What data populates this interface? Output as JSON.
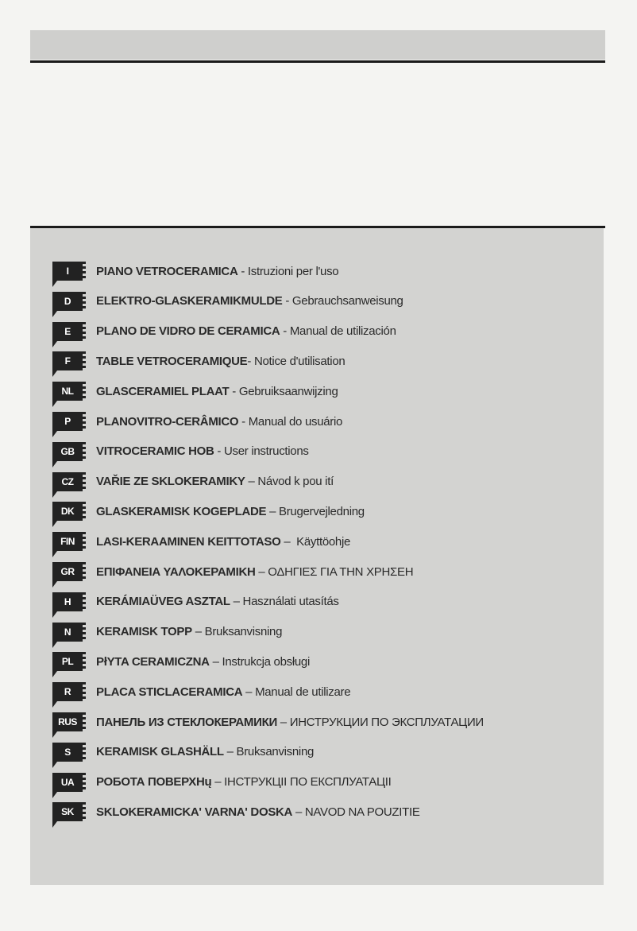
{
  "languages": [
    {
      "code": "I",
      "title": "PIANO VETROCERAMICA",
      "sep": " - ",
      "subtitle": "Istruzioni per l'uso"
    },
    {
      "code": "D",
      "title": "ELEKTRO-GLASKERAMIKMULDE",
      "sep": " - ",
      "subtitle": "Gebrauchsanweisung"
    },
    {
      "code": "E",
      "title": "PLANO DE VIDRO DE CERAMICA",
      "sep": " - ",
      "subtitle": "Manual de utilización"
    },
    {
      "code": "F",
      "title": "TABLE VETROCERAMIQUE",
      "sep": "- ",
      "subtitle": "Notice d'utilisation"
    },
    {
      "code": "NL",
      "title": "GLASCERAMIEL PLAAT",
      "sep": " - ",
      "subtitle": "Gebruiksaanwijzing"
    },
    {
      "code": "P",
      "title": "PLANOVITRO-CERÂMICO",
      "sep": " - ",
      "subtitle": "Manual do usuário"
    },
    {
      "code": "GB",
      "title": "VITROCERAMIC HOB",
      "sep": " - ",
      "subtitle": "User instructions"
    },
    {
      "code": "CZ",
      "title": "VAŘIE ZE SKLOKERAMIKY",
      "sep": " – ",
      "subtitle": "Návod k pou ití"
    },
    {
      "code": "DK",
      "title": "GLASKERAMISK KOGEPLADE",
      "sep": " – ",
      "subtitle": "Brugervejledning"
    },
    {
      "code": "FIN",
      "title": "LASI-KERAAMINEN KEITTOTASO",
      "sep": " –  ",
      "subtitle": "Käyttöohje"
    },
    {
      "code": "GR",
      "title": "ΕΠΙΦΑΝΕΙΑ ΥΑΛΟΚΕΡΑΜΙΚΗ",
      "sep": " – ",
      "subtitle": "ΟΔΗΓΙΕΣ ΓΙΑ ΤΗΝ ΧΡΗΣΕΗ"
    },
    {
      "code": "H",
      "title": "KERÁMIAÜVEG ASZTAL",
      "sep": " – ",
      "subtitle": "Használati utasítás"
    },
    {
      "code": "N",
      "title": "KERAMISK TOPP",
      "sep": " – ",
      "subtitle": "Bruksanvisning"
    },
    {
      "code": "PL",
      "title": "PłYTA CERAMICZNA",
      "sep": " – ",
      "subtitle": "Instrukcja obsługi"
    },
    {
      "code": "R",
      "title": "PLACA STICLACERAMICA",
      "sep": " – ",
      "subtitle": "Manual de utilizare"
    },
    {
      "code": "RUS",
      "title": "ПАНЕЛЬ ИЗ СТЕКЛОКЕРАМИКИ",
      "sep": " – ",
      "subtitle": "ИНСТРУКЦИИ ПО ЭКСПЛУАТАЦИИ"
    },
    {
      "code": "S",
      "title": "KERAMISK GLASHÄLL",
      "sep": " – ",
      "subtitle": "Bruksanvisning"
    },
    {
      "code": "UA",
      "title": "РОБОТА ПОВЕРХНų",
      "sep": " – ",
      "subtitle": "ІНСТРУКЦІІ  ПО ЕКСПЛУАТАЦІІ"
    },
    {
      "code": "SK",
      "title": "SKLOKERAMICKA' VARNA' DOSKA",
      "sep": " – ",
      "subtitle": "NAVOD NA POUZITIE"
    }
  ]
}
